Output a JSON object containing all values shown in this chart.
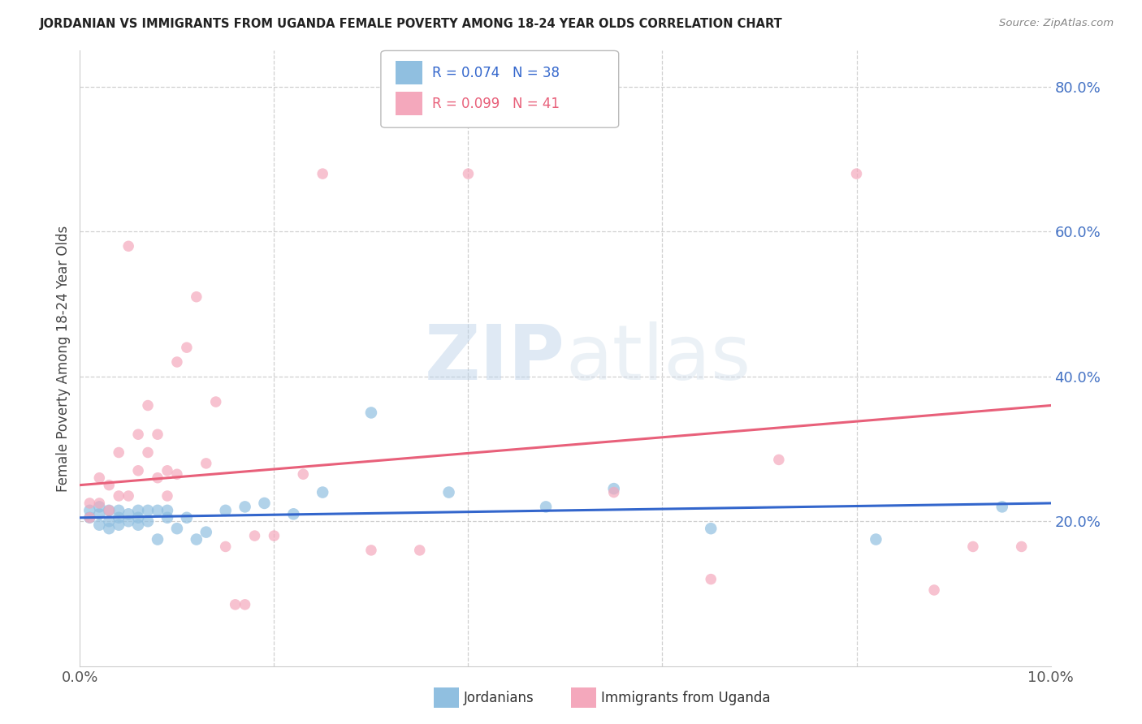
{
  "title": "JORDANIAN VS IMMIGRANTS FROM UGANDA FEMALE POVERTY AMONG 18-24 YEAR OLDS CORRELATION CHART",
  "source": "Source: ZipAtlas.com",
  "ylabel": "Female Poverty Among 18-24 Year Olds",
  "xlim": [
    0.0,
    0.1
  ],
  "ylim": [
    0.0,
    0.85
  ],
  "xtick_positions": [
    0.0,
    0.02,
    0.04,
    0.06,
    0.08,
    0.1
  ],
  "xtick_labels": [
    "0.0%",
    "",
    "",
    "",
    "",
    "10.0%"
  ],
  "yticks_right": [
    0.2,
    0.4,
    0.6,
    0.8
  ],
  "ytick_labels_right": [
    "20.0%",
    "40.0%",
    "60.0%",
    "80.0%"
  ],
  "blue_color": "#90bfe0",
  "pink_color": "#f4a8bc",
  "blue_line_color": "#3366cc",
  "pink_line_color": "#e8607a",
  "legend_blue_r": "R = 0.074",
  "legend_blue_n": "N = 38",
  "legend_pink_r": "R = 0.099",
  "legend_pink_n": "N = 41",
  "watermark_zip": "ZIP",
  "watermark_atlas": "atlas",
  "blue_x": [
    0.001,
    0.001,
    0.002,
    0.002,
    0.002,
    0.003,
    0.003,
    0.003,
    0.004,
    0.004,
    0.004,
    0.005,
    0.005,
    0.006,
    0.006,
    0.006,
    0.007,
    0.007,
    0.008,
    0.008,
    0.009,
    0.009,
    0.01,
    0.011,
    0.012,
    0.013,
    0.015,
    0.017,
    0.019,
    0.022,
    0.025,
    0.03,
    0.038,
    0.048,
    0.055,
    0.065,
    0.082,
    0.095
  ],
  "blue_y": [
    0.215,
    0.205,
    0.22,
    0.21,
    0.195,
    0.215,
    0.2,
    0.19,
    0.215,
    0.205,
    0.195,
    0.21,
    0.2,
    0.215,
    0.205,
    0.195,
    0.215,
    0.2,
    0.215,
    0.175,
    0.215,
    0.205,
    0.19,
    0.205,
    0.175,
    0.185,
    0.215,
    0.22,
    0.225,
    0.21,
    0.24,
    0.35,
    0.24,
    0.22,
    0.245,
    0.19,
    0.175,
    0.22
  ],
  "pink_x": [
    0.001,
    0.001,
    0.002,
    0.002,
    0.003,
    0.003,
    0.004,
    0.004,
    0.005,
    0.005,
    0.006,
    0.006,
    0.007,
    0.007,
    0.008,
    0.008,
    0.009,
    0.009,
    0.01,
    0.01,
    0.011,
    0.012,
    0.013,
    0.014,
    0.015,
    0.016,
    0.017,
    0.018,
    0.02,
    0.023,
    0.025,
    0.03,
    0.035,
    0.04,
    0.055,
    0.065,
    0.072,
    0.08,
    0.088,
    0.092,
    0.097
  ],
  "pink_y": [
    0.225,
    0.205,
    0.225,
    0.26,
    0.215,
    0.25,
    0.235,
    0.295,
    0.58,
    0.235,
    0.32,
    0.27,
    0.36,
    0.295,
    0.32,
    0.26,
    0.235,
    0.27,
    0.265,
    0.42,
    0.44,
    0.51,
    0.28,
    0.365,
    0.165,
    0.085,
    0.085,
    0.18,
    0.18,
    0.265,
    0.68,
    0.16,
    0.16,
    0.68,
    0.24,
    0.12,
    0.285,
    0.68,
    0.105,
    0.165,
    0.165
  ],
  "blue_trend_x": [
    0.0,
    0.1
  ],
  "blue_trend_y": [
    0.205,
    0.225
  ],
  "pink_trend_x": [
    0.0,
    0.1
  ],
  "pink_trend_y": [
    0.25,
    0.36
  ],
  "dot_size_blue": 110,
  "dot_size_pink": 95,
  "grid_color": "#d0d0d0",
  "title_color": "#222222",
  "source_color": "#888888",
  "right_axis_color": "#4472C4",
  "ylabel_color": "#444444"
}
